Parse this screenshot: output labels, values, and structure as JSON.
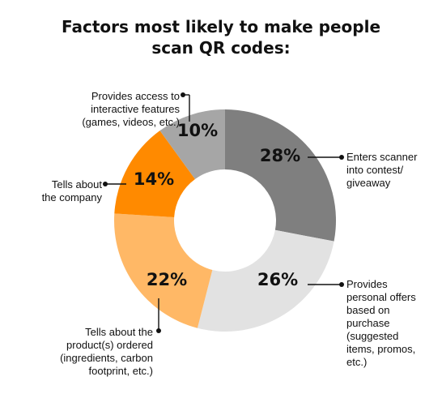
{
  "chart_data": {
    "type": "pie",
    "title": "Factors most likely to make people scan QR codes:",
    "title_lines": [
      "Factors most likely to make people",
      "scan QR codes:"
    ],
    "slices": [
      {
        "key": "contest",
        "value": 28,
        "label": "28%",
        "color": "#7f7f7f",
        "annotation": [
          "Enters scanner",
          "into contest/",
          "giveaway"
        ]
      },
      {
        "key": "offers",
        "value": 26,
        "label": "26%",
        "color": "#e2e2e2",
        "annotation": [
          "Provides",
          "personal offers",
          "based on",
          "purchase",
          "(suggested",
          "items, promos,",
          "etc.)"
        ]
      },
      {
        "key": "products",
        "value": 22,
        "label": "22%",
        "color": "#ffb866",
        "annotation": [
          "Tells about the",
          "product(s) ordered",
          "(ingredients, carbon",
          "footprint, etc.)"
        ]
      },
      {
        "key": "company",
        "value": 14,
        "label": "14%",
        "color": "#ff8a00",
        "annotation": [
          "Tells about",
          "the company"
        ]
      },
      {
        "key": "interactive",
        "value": 10,
        "label": "10%",
        "color": "#a6a6a6",
        "annotation": [
          "Provides access to",
          "interactive features",
          "(games, videos, etc.)"
        ]
      }
    ]
  }
}
